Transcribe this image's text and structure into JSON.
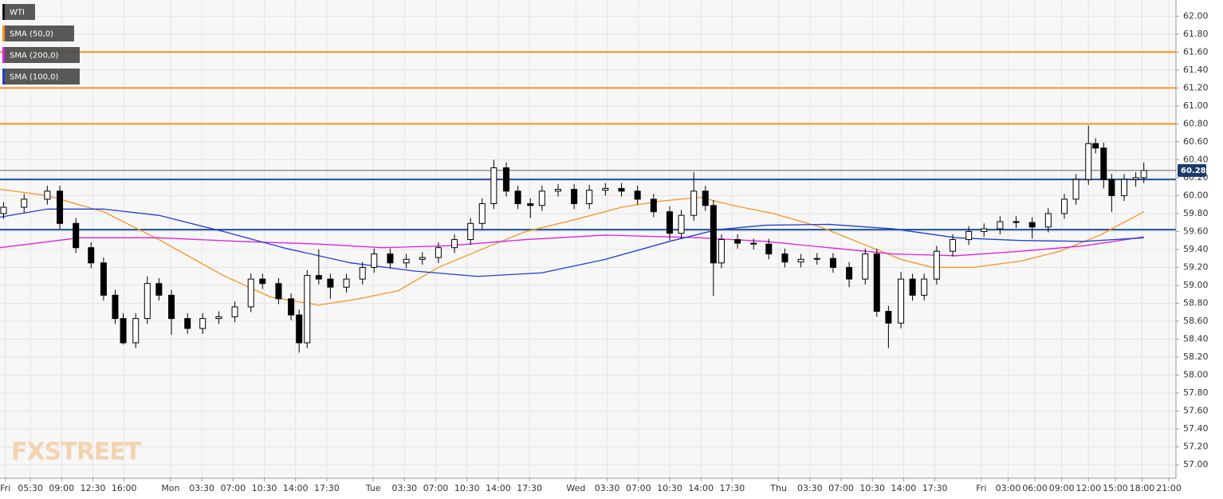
{
  "chart_data": {
    "type": "candlestick",
    "watermark": "FXSTREET",
    "grid": true,
    "xlim": [
      -0.6,
      131.1
    ],
    "ylim": [
      56.85,
      62.18
    ],
    "yticks": [
      {
        "value": 57,
        "label": "57.00"
      },
      {
        "value": 57.2,
        "label": "57.20"
      },
      {
        "value": 57.4,
        "label": "57.40"
      },
      {
        "value": 57.6,
        "label": "57.60"
      },
      {
        "value": 57.8,
        "label": "57.80"
      },
      {
        "value": 58,
        "label": "58.00"
      },
      {
        "value": 58.2,
        "label": "58.20"
      },
      {
        "value": 58.4,
        "label": "58.40"
      },
      {
        "value": 58.6,
        "label": "58.60"
      },
      {
        "value": 58.8,
        "label": "58.80"
      },
      {
        "value": 59,
        "label": "59.00"
      },
      {
        "value": 59.2,
        "label": "59.20"
      },
      {
        "value": 59.4,
        "label": "59.40"
      },
      {
        "value": 59.6,
        "label": "59.60"
      },
      {
        "value": 59.8,
        "label": "59.80"
      },
      {
        "value": 60,
        "label": "60.00"
      },
      {
        "value": 60.2,
        "label": "60.20"
      },
      {
        "value": 60.4,
        "label": "60.40"
      },
      {
        "value": 60.6,
        "label": "60.60"
      },
      {
        "value": 60.8,
        "label": "60.80"
      },
      {
        "value": 61,
        "label": "61.00"
      },
      {
        "value": 61.2,
        "label": "61.20"
      },
      {
        "value": 61.4,
        "label": "61.40"
      },
      {
        "value": 61.6,
        "label": "61.60"
      },
      {
        "value": 61.8,
        "label": "61.80"
      },
      {
        "value": 62,
        "label": "62.00"
      }
    ],
    "xticks": [
      {
        "value": 0,
        "label": "Fri"
      },
      {
        "value": 2.8,
        "label": "05:30"
      },
      {
        "value": 6.3,
        "label": "09:00"
      },
      {
        "value": 9.8,
        "label": "12:30"
      },
      {
        "value": 13.3,
        "label": "16:00"
      },
      {
        "value": 18.5,
        "label": "Mon"
      },
      {
        "value": 22,
        "label": "03:30"
      },
      {
        "value": 25.5,
        "label": "07:00"
      },
      {
        "value": 29,
        "label": "10:30"
      },
      {
        "value": 32.5,
        "label": "14:00"
      },
      {
        "value": 36,
        "label": "17:30"
      },
      {
        "value": 41.2,
        "label": "Tue"
      },
      {
        "value": 44.7,
        "label": "03:30"
      },
      {
        "value": 48.2,
        "label": "07:00"
      },
      {
        "value": 51.7,
        "label": "10:30"
      },
      {
        "value": 55.2,
        "label": "14:00"
      },
      {
        "value": 58.7,
        "label": "17:30"
      },
      {
        "value": 63.9,
        "label": "Wed"
      },
      {
        "value": 67.4,
        "label": "03:30"
      },
      {
        "value": 70.9,
        "label": "07:00"
      },
      {
        "value": 74.4,
        "label": "10:30"
      },
      {
        "value": 77.9,
        "label": "14:00"
      },
      {
        "value": 81.4,
        "label": "17:30"
      },
      {
        "value": 86.6,
        "label": "Thu"
      },
      {
        "value": 90.1,
        "label": "03:30"
      },
      {
        "value": 93.6,
        "label": "07:00"
      },
      {
        "value": 97.1,
        "label": "10:30"
      },
      {
        "value": 100.6,
        "label": "14:00"
      },
      {
        "value": 104.1,
        "label": "17:30"
      },
      {
        "value": 109.3,
        "label": "Fri"
      },
      {
        "value": 112.3,
        "label": "03:00"
      },
      {
        "value": 115.3,
        "label": "06:00"
      },
      {
        "value": 118.3,
        "label": "09:00"
      },
      {
        "value": 121.3,
        "label": "12:00"
      },
      {
        "value": 124.3,
        "label": "15:00"
      },
      {
        "value": 127.3,
        "label": "18:00"
      },
      {
        "value": 130.3,
        "label": "21:00"
      }
    ],
    "last_price": 60.28,
    "last_price_color": "#1a3a6b",
    "hlines": [
      {
        "value": 61.6,
        "color": "#f7931e"
      },
      {
        "value": 61.2,
        "color": "#f7931e"
      },
      {
        "value": 60.8,
        "color": "#f7931e"
      },
      {
        "value": 60.18,
        "color": "#1a4f9c"
      },
      {
        "value": 59.62,
        "color": "#1a4f9c"
      }
    ],
    "series": [
      {
        "name": "WTI",
        "type": "candlestick",
        "color": "#000000",
        "x": [
          -0.2,
          2.1,
          4.7,
          6.1,
          7.9,
          9.6,
          11.0,
          12.3,
          13.2,
          14.6,
          15.9,
          17.2,
          18.6,
          20.4,
          22.1,
          23.9,
          25.7,
          27.5,
          28.8,
          30.6,
          32.0,
          32.9,
          33.8,
          35.1,
          36.4,
          38.2,
          40.0,
          41.3,
          43.1,
          44.9,
          46.7,
          48.5,
          50.3,
          52.1,
          53.4,
          54.7,
          56.1,
          57.4,
          58.8,
          60.1,
          61.9,
          63.7,
          65.4,
          67.2,
          69.0,
          70.8,
          72.6,
          74.4,
          75.7,
          77.1,
          78.4,
          79.3,
          80.2,
          82.0,
          83.8,
          85.5,
          87.3,
          89.1,
          90.9,
          92.7,
          94.5,
          96.3,
          97.6,
          98.9,
          100.3,
          101.6,
          102.9,
          104.3,
          106.1,
          107.9,
          109.6,
          111.4,
          113.2,
          115.0,
          116.8,
          118.6,
          119.9,
          121.3,
          122.1,
          123.0,
          123.9,
          125.3,
          126.6,
          127.5
        ],
        "open": [
          59.8,
          59.87,
          59.96,
          60.05,
          59.69,
          59.42,
          59.25,
          58.89,
          58.63,
          58.36,
          58.63,
          59.02,
          58.89,
          58.63,
          58.52,
          58.63,
          58.65,
          58.76,
          59.07,
          59.02,
          58.85,
          58.67,
          58.36,
          59.11,
          59.07,
          58.98,
          59.07,
          59.2,
          59.35,
          59.25,
          59.29,
          59.31,
          59.42,
          59.51,
          59.69,
          59.91,
          60.31,
          60.05,
          59.91,
          59.89,
          60.05,
          60.07,
          59.91,
          60.06,
          60.08,
          60.05,
          59.96,
          59.82,
          59.58,
          59.78,
          60.05,
          59.89,
          59.25,
          59.51,
          59.47,
          59.46,
          59.35,
          59.26,
          59.29,
          59.3,
          59.2,
          59.07,
          59.35,
          58.71,
          58.58,
          59.07,
          58.89,
          59.07,
          59.38,
          59.51,
          59.6,
          59.63,
          59.71,
          59.7,
          59.65,
          59.8,
          59.96,
          60.18,
          60.58,
          60.53,
          60.18,
          60.0,
          60.18,
          60.2
        ],
        "high": [
          59.93,
          60.02,
          60.11,
          60.11,
          59.75,
          59.48,
          59.31,
          58.95,
          58.69,
          58.69,
          59.1,
          59.08,
          58.95,
          58.69,
          58.69,
          58.71,
          58.82,
          59.13,
          59.13,
          59.08,
          58.91,
          58.73,
          59.17,
          59.4,
          59.13,
          59.13,
          59.26,
          59.41,
          59.41,
          59.35,
          59.37,
          59.48,
          59.57,
          59.75,
          59.97,
          60.4,
          60.37,
          60.11,
          59.97,
          60.11,
          60.13,
          60.13,
          60.12,
          60.14,
          60.14,
          60.11,
          60.02,
          59.88,
          59.84,
          60.26,
          60.11,
          59.95,
          59.57,
          59.57,
          59.52,
          59.52,
          59.41,
          59.35,
          59.36,
          59.36,
          59.26,
          59.41,
          59.41,
          58.77,
          59.15,
          59.13,
          59.13,
          59.44,
          59.57,
          59.66,
          59.69,
          59.77,
          59.77,
          59.76,
          59.86,
          60.02,
          60.24,
          60.78,
          60.64,
          60.59,
          60.24,
          60.24,
          60.26,
          60.37
        ],
        "low": [
          59.74,
          59.81,
          59.9,
          59.63,
          59.36,
          59.19,
          58.83,
          58.57,
          58.34,
          58.3,
          58.57,
          58.83,
          58.45,
          58.46,
          58.46,
          58.57,
          58.59,
          58.7,
          58.96,
          58.79,
          58.61,
          58.25,
          58.3,
          59.01,
          58.85,
          58.92,
          59.01,
          59.14,
          59.19,
          59.19,
          59.23,
          59.25,
          59.36,
          59.45,
          59.63,
          59.85,
          59.99,
          59.85,
          59.75,
          59.83,
          59.99,
          59.85,
          59.85,
          60.0,
          59.99,
          59.9,
          59.76,
          59.5,
          59.52,
          59.72,
          59.83,
          58.88,
          59.19,
          59.41,
          59.4,
          59.29,
          59.2,
          59.2,
          59.23,
          59.14,
          58.98,
          59.01,
          58.65,
          58.3,
          58.52,
          58.83,
          58.83,
          59.01,
          59.32,
          59.45,
          59.54,
          59.57,
          59.64,
          59.52,
          59.59,
          59.74,
          59.9,
          60.12,
          60.47,
          60.08,
          59.82,
          59.94,
          60.1,
          60.14
        ],
        "close": [
          59.87,
          59.96,
          60.05,
          59.69,
          59.42,
          59.25,
          58.89,
          58.63,
          58.36,
          58.63,
          59.02,
          58.89,
          58.63,
          58.52,
          58.63,
          58.65,
          58.76,
          59.07,
          59.02,
          58.85,
          58.67,
          58.36,
          59.11,
          59.07,
          58.98,
          59.07,
          59.2,
          59.35,
          59.25,
          59.29,
          59.31,
          59.42,
          59.51,
          59.69,
          59.91,
          60.31,
          60.05,
          59.91,
          59.89,
          60.05,
          60.07,
          59.91,
          60.06,
          60.08,
          60.05,
          59.96,
          59.82,
          59.58,
          59.78,
          60.05,
          59.89,
          59.25,
          59.51,
          59.47,
          59.46,
          59.35,
          59.26,
          59.29,
          59.3,
          59.2,
          59.07,
          59.35,
          58.71,
          58.58,
          59.07,
          58.89,
          59.07,
          59.38,
          59.51,
          59.6,
          59.63,
          59.71,
          59.7,
          59.65,
          59.8,
          59.96,
          60.18,
          60.58,
          60.53,
          60.18,
          60.0,
          60.18,
          60.2,
          60.28
        ]
      },
      {
        "name": "SMA (50,0)",
        "type": "line",
        "color": "#f7931e",
        "x": [
          -0.6,
          4.7,
          11.0,
          17.2,
          24.4,
          29.7,
          35.1,
          39.6,
          44.0,
          48.5,
          53.8,
          58.3,
          63.7,
          69.0,
          73.5,
          77.9,
          81.5,
          86.0,
          91.3,
          95.8,
          100.3,
          103.8,
          108.3,
          113.7,
          118.1,
          122.6,
          127.5
        ],
        "values": [
          60.07,
          60.0,
          59.82,
          59.51,
          59.11,
          58.87,
          58.78,
          58.85,
          58.94,
          59.2,
          59.42,
          59.6,
          59.73,
          59.87,
          59.94,
          59.98,
          59.89,
          59.8,
          59.65,
          59.47,
          59.29,
          59.2,
          59.2,
          59.27,
          59.38,
          59.56,
          59.82
        ]
      },
      {
        "name": "SMA (200,0)",
        "type": "line",
        "color": "#e020e0",
        "x": [
          -0.6,
          8.3,
          17.2,
          26.2,
          35.1,
          42.2,
          49.4,
          58.3,
          67.2,
          77.9,
          85.1,
          92.2,
          99.4,
          106.5,
          113.7,
          120.8,
          127.5
        ],
        "values": [
          59.42,
          59.53,
          59.53,
          59.49,
          59.46,
          59.42,
          59.44,
          59.51,
          59.56,
          59.53,
          59.49,
          59.42,
          59.35,
          59.33,
          59.38,
          59.44,
          59.54
        ]
      },
      {
        "name": "SMA (100,0)",
        "type": "line",
        "color": "#1f3fcf",
        "x": [
          -0.6,
          4.7,
          11.0,
          17.2,
          24.4,
          31.5,
          38.7,
          45.8,
          52.9,
          60.1,
          67.2,
          74.4,
          79.7,
          85.1,
          92.2,
          99.4,
          106.5,
          113.7,
          120.8,
          127.5
        ],
        "values": [
          59.76,
          59.85,
          59.85,
          59.78,
          59.6,
          59.41,
          59.25,
          59.16,
          59.1,
          59.14,
          59.29,
          59.49,
          59.62,
          59.67,
          59.68,
          59.63,
          59.53,
          59.5,
          59.49,
          59.53
        ]
      }
    ]
  }
}
